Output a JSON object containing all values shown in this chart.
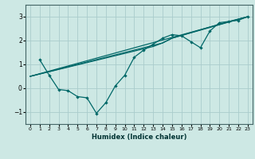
{
  "xlabel": "Humidex (Indice chaleur)",
  "ylabel": "",
  "background_color": "#cde8e4",
  "line_color": "#006868",
  "grid_color": "#aacccc",
  "xlim": [
    -0.5,
    23.5
  ],
  "ylim": [
    -1.5,
    3.5
  ],
  "yticks": [
    -1,
    0,
    1,
    2,
    3
  ],
  "xticks": [
    0,
    1,
    2,
    3,
    4,
    5,
    6,
    7,
    8,
    9,
    10,
    11,
    12,
    13,
    14,
    15,
    16,
    17,
    18,
    19,
    20,
    21,
    22,
    23
  ],
  "series": [
    {
      "x": [
        1,
        2,
        3,
        4,
        5,
        6,
        7,
        8,
        9,
        10,
        11,
        12,
        13,
        14,
        15,
        16,
        17,
        18,
        19,
        20,
        21,
        22,
        23
      ],
      "y": [
        1.2,
        0.55,
        -0.05,
        -0.1,
        -0.35,
        -0.4,
        -1.05,
        -0.6,
        0.1,
        0.55,
        1.3,
        1.6,
        1.85,
        2.1,
        2.25,
        2.2,
        1.95,
        1.7,
        2.4,
        2.75,
        2.8,
        2.85,
        3.0
      ],
      "markers": true
    },
    {
      "x": [
        0,
        23
      ],
      "y": [
        0.5,
        3.0
      ],
      "markers": false
    },
    {
      "x": [
        0,
        13,
        14,
        15,
        21,
        23
      ],
      "y": [
        0.5,
        1.75,
        1.9,
        2.1,
        2.8,
        3.0
      ],
      "markers": false
    },
    {
      "x": [
        0,
        14,
        15,
        23
      ],
      "y": [
        0.5,
        1.9,
        2.1,
        3.0
      ],
      "markers": false
    }
  ]
}
